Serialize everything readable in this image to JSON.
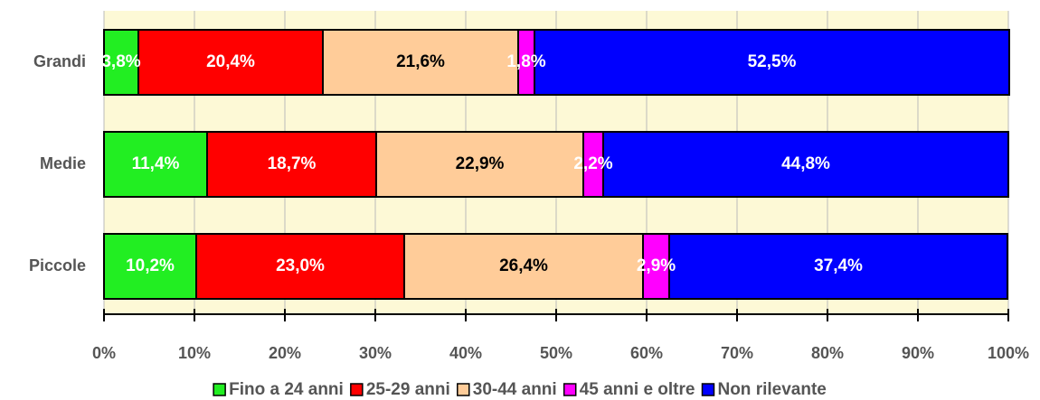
{
  "chart_data": {
    "type": "stacked-bar-horizontal",
    "categories": [
      "Grandi",
      "Medie",
      "Piccole"
    ],
    "series": [
      {
        "name": "Fino a 24 anni",
        "color": "#22ee22",
        "label_color": "#ffffff",
        "values": [
          3.8,
          11.4,
          10.2
        ],
        "value_labels": [
          "3,8%",
          "11,4%",
          "10,2%"
        ]
      },
      {
        "name": "25-29 anni",
        "color": "#ff0000",
        "label_color": "#ffffff",
        "values": [
          20.4,
          18.7,
          23.0
        ],
        "value_labels": [
          "20,4%",
          "18,7%",
          "23,0%"
        ]
      },
      {
        "name": "30-44 anni",
        "color": "#ffcc99",
        "label_color": "#000000",
        "values": [
          21.6,
          22.9,
          26.4
        ],
        "value_labels": [
          "21,6%",
          "22,9%",
          "26,4%"
        ]
      },
      {
        "name": "45 anni e oltre",
        "color": "#ff00ff",
        "label_color": "#ffffff",
        "values": [
          1.8,
          2.2,
          2.9
        ],
        "value_labels": [
          "1,8%",
          "2,2%",
          "2,9%"
        ]
      },
      {
        "name": "Non rilevante",
        "color": "#0000ff",
        "label_color": "#ffffff",
        "values": [
          52.5,
          44.8,
          37.4
        ],
        "value_labels": [
          "52,5%",
          "44,8%",
          "37,4%"
        ]
      }
    ],
    "xlim": [
      0,
      100
    ],
    "xticks": [
      {
        "value": 0,
        "label": "0%"
      },
      {
        "value": 10,
        "label": "10%"
      },
      {
        "value": 20,
        "label": "20%"
      },
      {
        "value": 30,
        "label": "30%"
      },
      {
        "value": 40,
        "label": "40%"
      },
      {
        "value": 50,
        "label": "50%"
      },
      {
        "value": 60,
        "label": "60%"
      },
      {
        "value": 70,
        "label": "70%"
      },
      {
        "value": 80,
        "label": "80%"
      },
      {
        "value": 90,
        "label": "90%"
      },
      {
        "value": 100,
        "label": "100%"
      }
    ],
    "grid": true,
    "legend": "bottom"
  }
}
